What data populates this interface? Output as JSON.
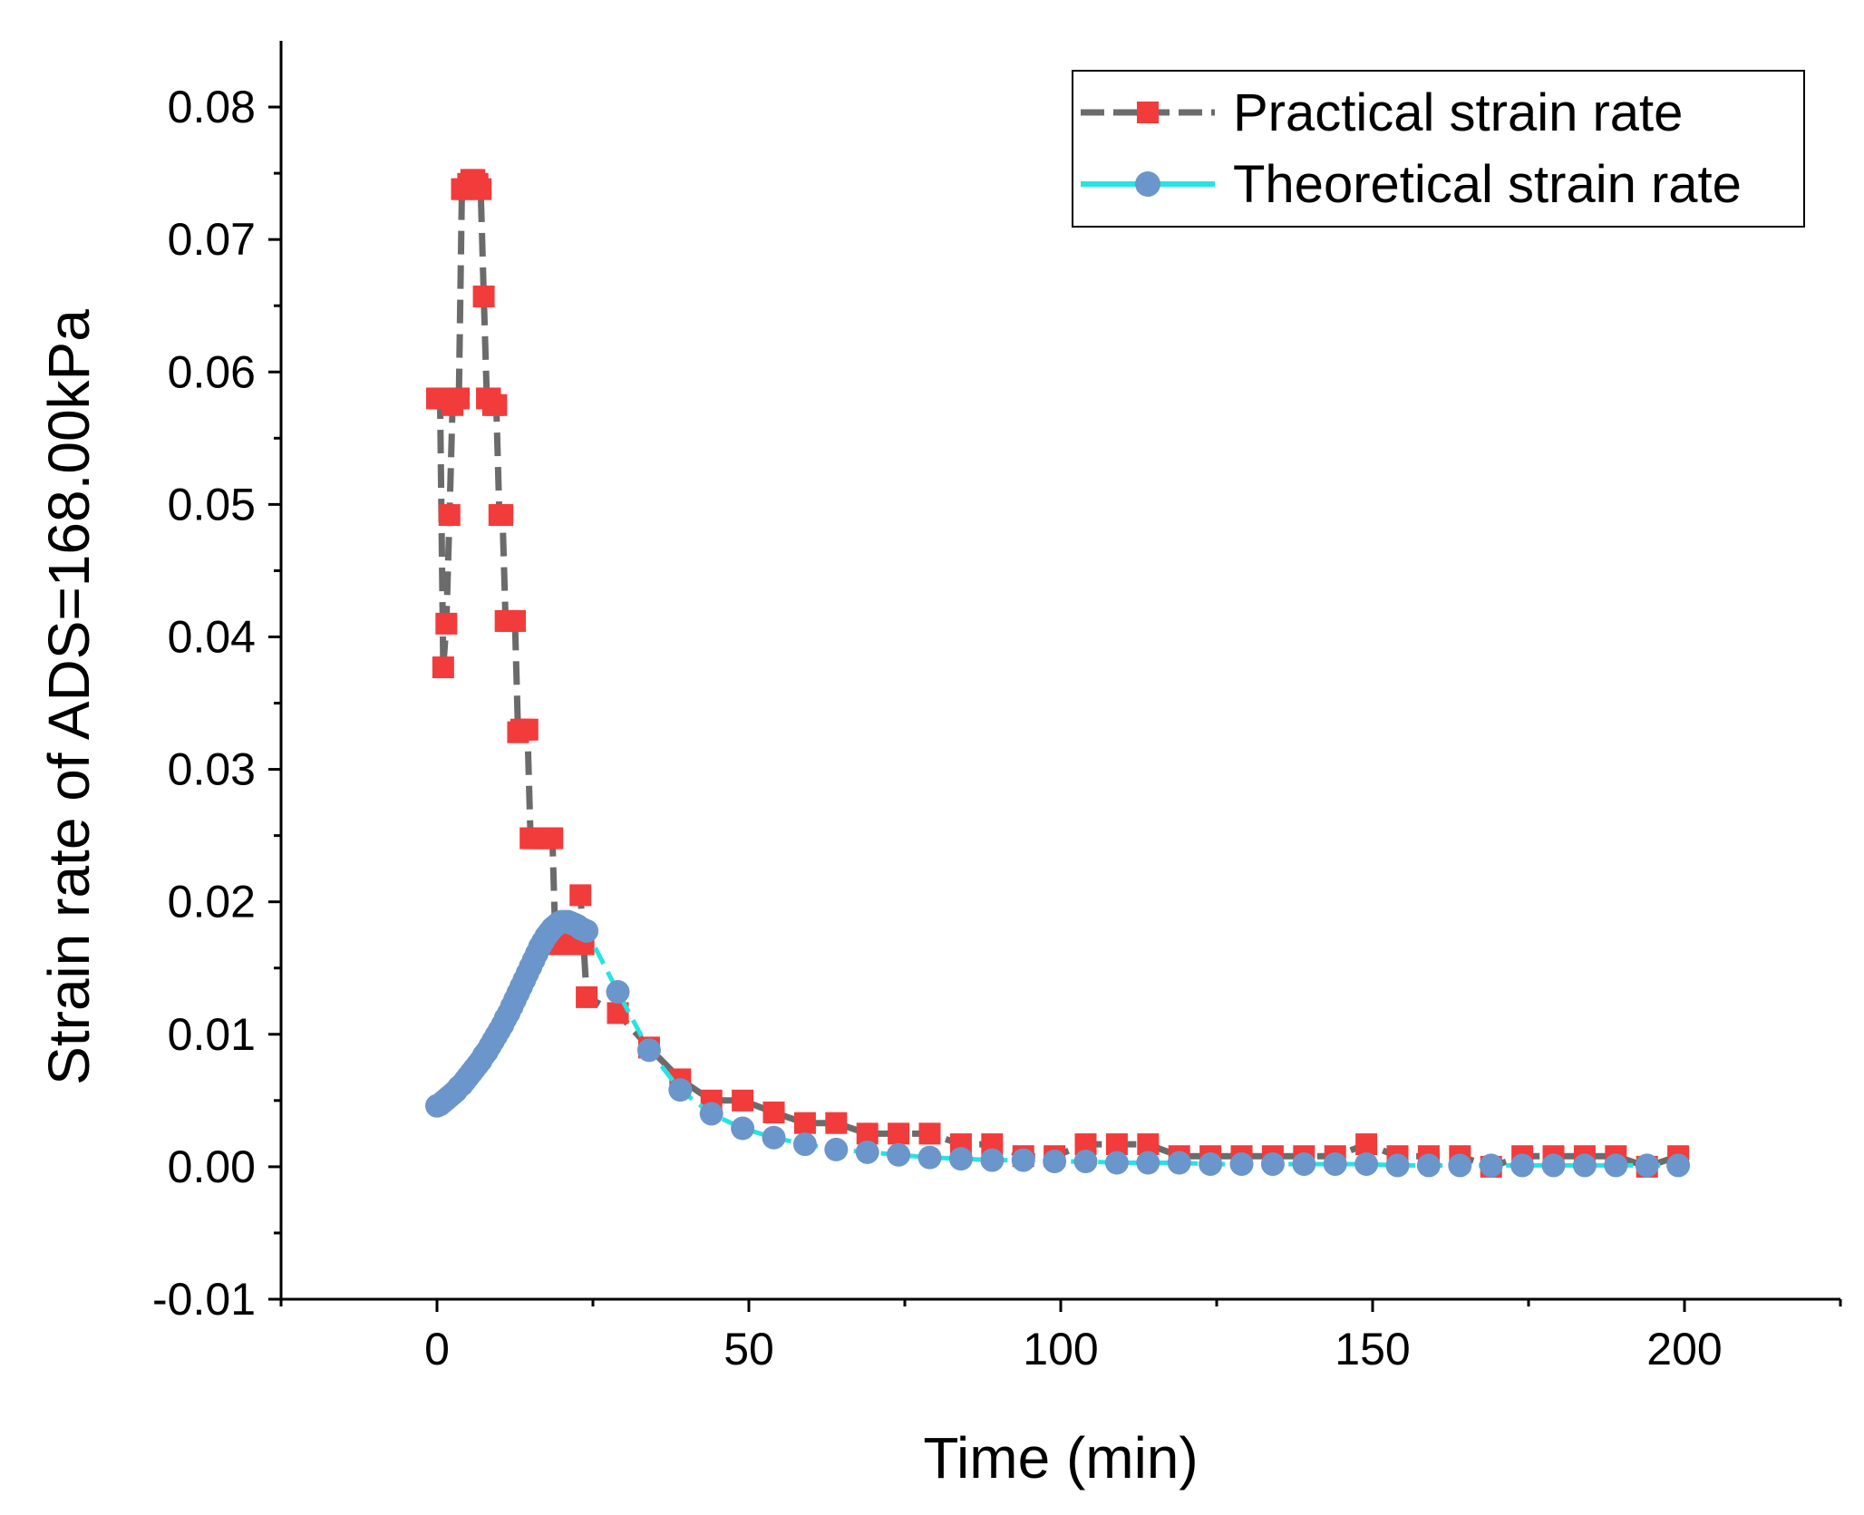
{
  "colors": {
    "practical_line": "#6b6b6b",
    "practical_marker": "#f23b3b",
    "theoretical_line": "#27e3e3",
    "theoretical_marker": "#6b96cb"
  },
  "chart_data": {
    "type": "line",
    "title": "",
    "xlabel": "Time (min)",
    "ylabel": "Strain rate of ADS=168.00kPa",
    "xlim": [
      -25,
      225
    ],
    "ylim": [
      -0.01,
      0.085
    ],
    "x_ticks": [
      0,
      50,
      100,
      150,
      200
    ],
    "x_tick_labels": [
      "0",
      "50",
      "100",
      "150",
      "200"
    ],
    "y_ticks": [
      -0.01,
      0,
      0.01,
      0.02,
      0.03,
      0.04,
      0.05,
      0.06,
      0.07,
      0.08
    ],
    "y_tick_labels": [
      "-0.01",
      "0.00",
      "0.01",
      "0.02",
      "0.03",
      "0.04",
      "0.05",
      "0.06",
      "0.07",
      "0.08"
    ],
    "grid": false,
    "legend": {
      "position": "top-right",
      "entries": [
        "Practical strain rate",
        "Theoretical strain rate"
      ]
    },
    "series": [
      {
        "name": "Practical strain rate",
        "line_style": "dash",
        "marker": "square",
        "x": [
          0,
          0.5,
          1,
          1.5,
          2,
          2.5,
          3,
          3.5,
          4,
          4.5,
          5,
          5.5,
          6,
          6.5,
          7,
          7.5,
          8,
          8.5,
          9,
          9.5,
          10,
          10.5,
          11,
          11.5,
          12,
          12.5,
          13,
          13.5,
          14,
          14.5,
          15,
          15.5,
          16,
          16.5,
          17,
          17.5,
          18,
          18.5,
          19,
          19.5,
          20,
          20.5,
          21,
          21.5,
          22,
          22.5,
          23,
          23.5,
          24,
          29,
          34,
          39,
          44,
          49,
          54,
          59,
          64,
          69,
          74,
          79,
          84,
          89,
          94,
          99,
          104,
          109,
          114,
          119,
          124,
          129,
          134,
          139,
          144,
          149,
          154,
          159,
          164,
          169,
          174,
          179,
          184,
          189,
          194,
          199
        ],
        "y": [
          0.058,
          0.058,
          0.0377,
          0.041,
          0.0492,
          0.0575,
          0.058,
          0.058,
          0.0738,
          0.0738,
          0.0742,
          0.0745,
          0.0745,
          0.0742,
          0.0738,
          0.0657,
          0.058,
          0.058,
          0.0575,
          0.0575,
          0.0492,
          0.0492,
          0.0412,
          0.0412,
          0.0412,
          0.0412,
          0.0328,
          0.033,
          0.033,
          0.033,
          0.0248,
          0.0248,
          0.0248,
          0.0248,
          0.0248,
          0.0248,
          0.0248,
          0.0248,
          0.0168,
          0.0168,
          0.0168,
          0.0168,
          0.0168,
          0.0168,
          0.0168,
          0.0168,
          0.0205,
          0.0168,
          0.0128,
          0.0116,
          0.009,
          0.0066,
          0.005,
          0.005,
          0.0041,
          0.0033,
          0.0033,
          0.0025,
          0.0025,
          0.0025,
          0.0017,
          0.0017,
          0.0008,
          0.0008,
          0.0017,
          0.0017,
          0.0017,
          0.0008,
          0.0008,
          0.0008,
          0.0008,
          0.0008,
          0.0008,
          0.0017,
          0.0008,
          0.0008,
          0.0008,
          0.0,
          0.0008,
          0.0008,
          0.0008,
          0.0008,
          0.0,
          0.0008
        ]
      },
      {
        "name": "Theoretical strain rate",
        "line_style": "dash",
        "marker": "circle",
        "x": [
          0,
          0.5,
          1,
          1.5,
          2,
          2.5,
          3,
          3.5,
          4,
          4.5,
          5,
          5.5,
          6,
          6.5,
          7,
          7.5,
          8,
          8.5,
          9,
          9.5,
          10,
          10.5,
          11,
          11.5,
          12,
          12.5,
          13,
          13.5,
          14,
          14.5,
          15,
          15.5,
          16,
          16.5,
          17,
          17.5,
          18,
          18.5,
          19,
          19.5,
          20,
          20.5,
          21,
          21.5,
          22,
          22.5,
          23,
          23.5,
          24,
          29,
          34,
          39,
          44,
          49,
          54,
          59,
          64,
          69,
          74,
          79,
          84,
          89,
          94,
          99,
          104,
          109,
          114,
          119,
          124,
          129,
          134,
          139,
          144,
          149,
          154,
          159,
          164,
          169,
          174,
          179,
          184,
          189,
          194,
          199
        ],
        "y": [
          0.0046,
          0.0047,
          0.0049,
          0.0051,
          0.0053,
          0.0055,
          0.0057,
          0.006,
          0.0062,
          0.0065,
          0.0068,
          0.0071,
          0.0074,
          0.0077,
          0.008,
          0.0084,
          0.0087,
          0.0091,
          0.0095,
          0.0099,
          0.0103,
          0.0107,
          0.0112,
          0.0116,
          0.0121,
          0.0126,
          0.0131,
          0.0136,
          0.0141,
          0.0146,
          0.0151,
          0.0156,
          0.0161,
          0.0166,
          0.017,
          0.0174,
          0.0177,
          0.018,
          0.0182,
          0.0184,
          0.0185,
          0.0185,
          0.0185,
          0.0184,
          0.0183,
          0.0182,
          0.018,
          0.0179,
          0.0178,
          0.0132,
          0.0088,
          0.0058,
          0.004,
          0.0029,
          0.0022,
          0.0017,
          0.0013,
          0.0011,
          0.0009,
          0.0007,
          0.0006,
          0.0005,
          0.0005,
          0.0004,
          0.0004,
          0.0003,
          0.0003,
          0.0003,
          0.0002,
          0.0002,
          0.0002,
          0.0002,
          0.0002,
          0.0002,
          0.0001,
          0.0001,
          0.0001,
          0.0001,
          0.0001,
          0.0001,
          0.0001,
          0.0001,
          0.0001,
          0.0001
        ]
      }
    ]
  }
}
